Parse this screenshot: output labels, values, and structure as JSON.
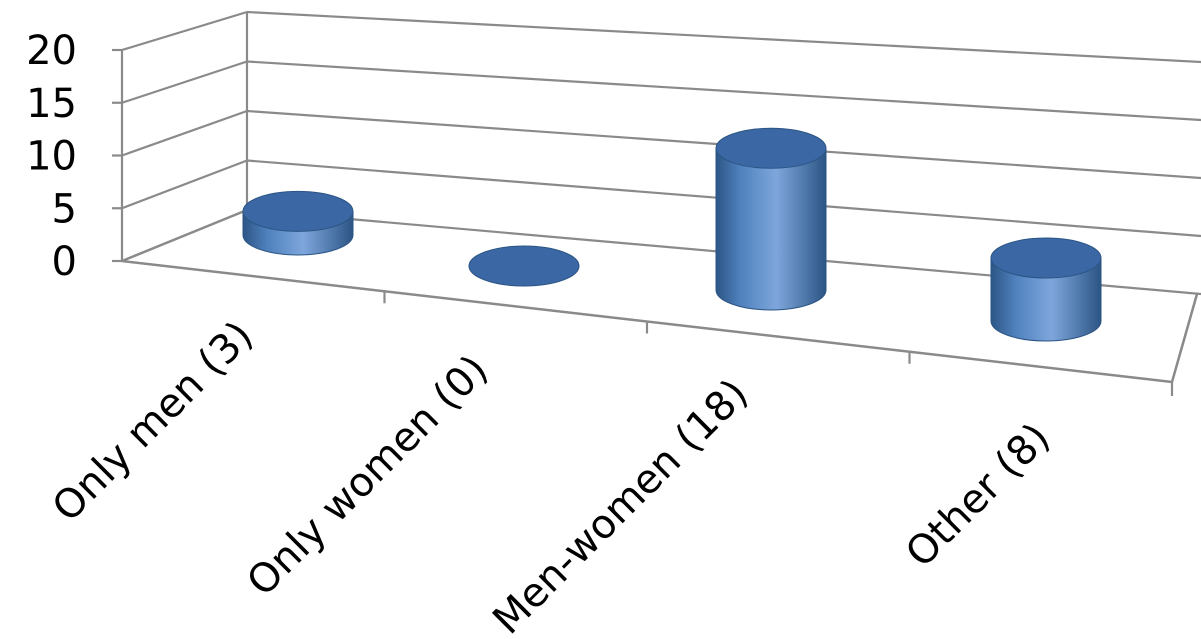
{
  "chart_data": {
    "type": "bar",
    "style": "3d-cylinder",
    "categories": [
      "Only men (3)",
      "Only women (0)",
      "Men-women (18)",
      "Other (8)"
    ],
    "values": [
      3,
      0,
      18,
      8
    ],
    "y_ticks": [
      "0",
      "5",
      "10",
      "15",
      "20"
    ],
    "ylim": [
      0,
      20
    ],
    "grid": true,
    "legend": "none",
    "colors": {
      "bar": "#4f81bd",
      "bar_dark": "#2c5585",
      "bar_light": "#7ea6dc",
      "top": "#3b68a5",
      "grid": "#8a8a8a"
    }
  }
}
